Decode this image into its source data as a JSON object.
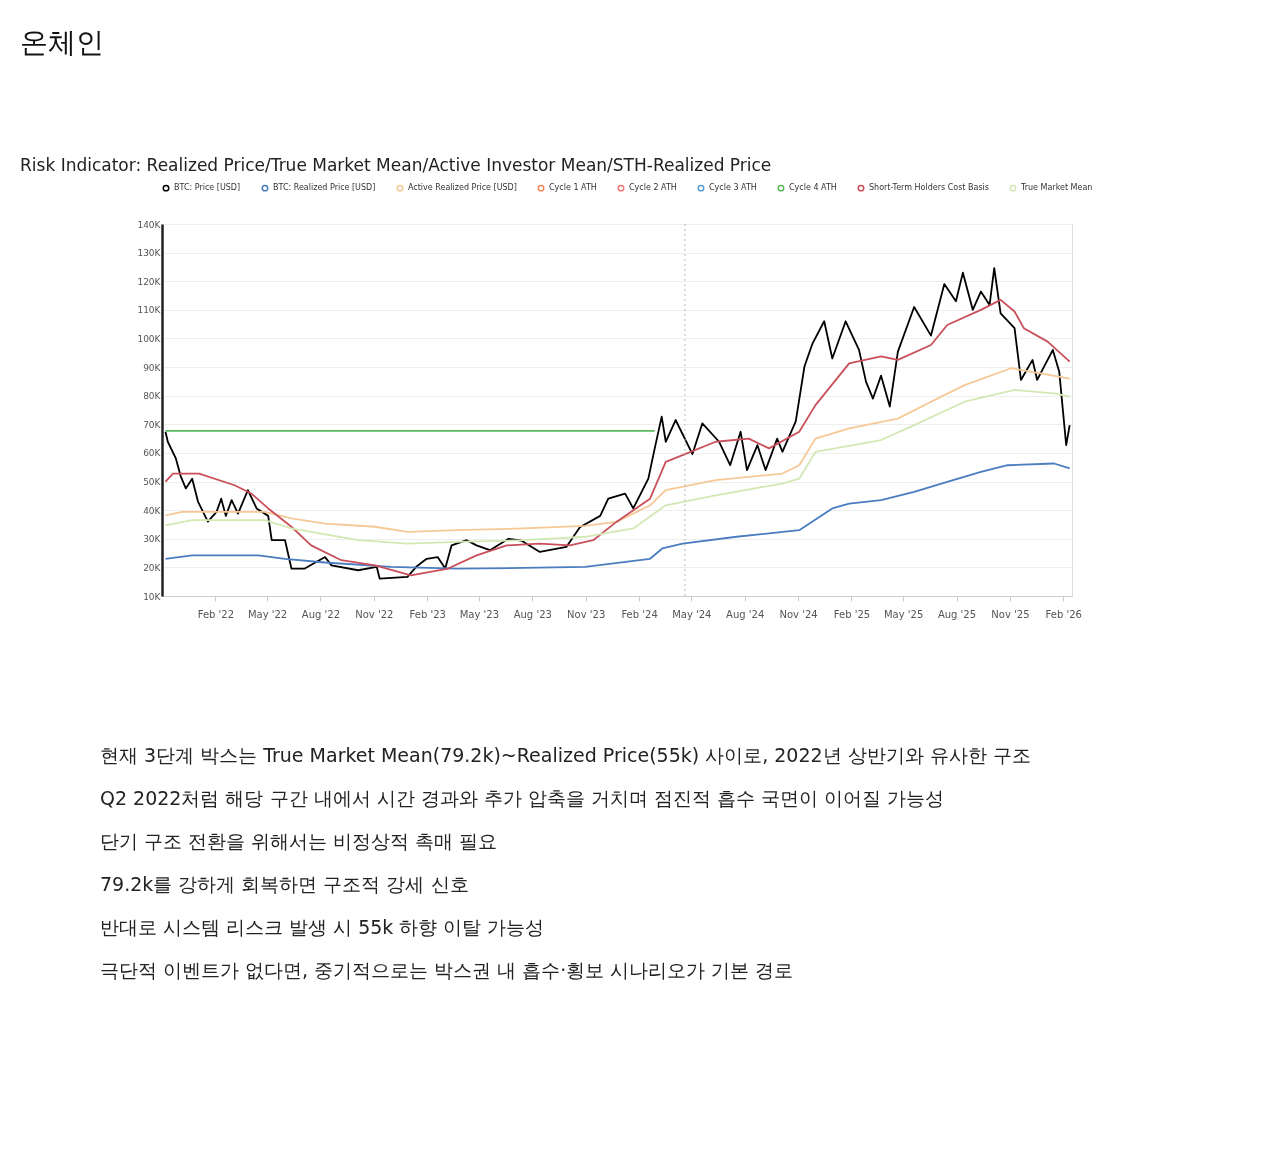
{
  "chart_data": {
    "type": "line",
    "title": "온체인",
    "subtitle": "Risk Indicator: Realized Price/True Market Mean/Active Investor Mean/STH-Realized Price",
    "legend": "top",
    "grid": "y",
    "xlim": [
      "2021-11-01",
      "2026-02-16"
    ],
    "xticks": [
      {
        "value": "2022-02-01",
        "label": "Feb '22"
      },
      {
        "value": "2022-05-01",
        "label": "May '22"
      },
      {
        "value": "2022-08-01",
        "label": "Aug '22"
      },
      {
        "value": "2022-11-01",
        "label": "Nov '22"
      },
      {
        "value": "2023-02-01",
        "label": "Feb '23"
      },
      {
        "value": "2023-05-01",
        "label": "May '23"
      },
      {
        "value": "2023-08-01",
        "label": "Aug '23"
      },
      {
        "value": "2023-11-01",
        "label": "Nov '23"
      },
      {
        "value": "2024-02-01",
        "label": "Feb '24"
      },
      {
        "value": "2024-05-01",
        "label": "May '24"
      },
      {
        "value": "2024-08-01",
        "label": "Aug '24"
      },
      {
        "value": "2024-11-01",
        "label": "Nov '24"
      },
      {
        "value": "2025-02-01",
        "label": "Feb '25"
      },
      {
        "value": "2025-05-01",
        "label": "May '25"
      },
      {
        "value": "2025-08-01",
        "label": "Aug '25"
      },
      {
        "value": "2025-11-01",
        "label": "Nov '25"
      },
      {
        "value": "2026-02-01",
        "label": "Feb '26"
      }
    ],
    "ylim": [
      10000,
      140000
    ],
    "yticks": [
      {
        "value": 10000,
        "label": "10K"
      },
      {
        "value": 20000,
        "label": "20K"
      },
      {
        "value": 30000,
        "label": "30K"
      },
      {
        "value": 40000,
        "label": "40K"
      },
      {
        "value": 50000,
        "label": "50K"
      },
      {
        "value": 60000,
        "label": "60K"
      },
      {
        "value": 70000,
        "label": "70K"
      },
      {
        "value": 80000,
        "label": "80K"
      },
      {
        "value": 90000,
        "label": "90K"
      },
      {
        "value": 100000,
        "label": "100K"
      },
      {
        "value": 110000,
        "label": "110K"
      },
      {
        "value": 120000,
        "label": "120K"
      },
      {
        "value": 130000,
        "label": "130K"
      },
      {
        "value": 140000,
        "label": "140K"
      }
    ],
    "ref_lines": [
      {
        "axis": "x",
        "value": "2024-04-20",
        "label": null,
        "color": "#bbbbbb",
        "line_style": "dotted"
      }
    ],
    "series": [
      {
        "name": "BTC: Price [USD]",
        "color": "#000000",
        "x": [
          "2021-11-07",
          "2021-11-11",
          "2021-11-25",
          "2021-12-03",
          "2021-12-12",
          "2021-12-23",
          "2022-01-02",
          "2022-01-19",
          "2022-02-03",
          "2022-02-11",
          "2022-02-19",
          "2022-03-01",
          "2022-03-12",
          "2022-03-29",
          "2022-04-13",
          "2022-05-03",
          "2022-05-09",
          "2022-06-01",
          "2022-06-12",
          "2022-07-05",
          "2022-08-09",
          "2022-08-20",
          "2022-10-05",
          "2022-11-06",
          "2022-11-11",
          "2022-12-29",
          "2023-01-13",
          "2023-01-31",
          "2023-02-19",
          "2023-03-04",
          "2023-03-15",
          "2023-04-10",
          "2023-04-27",
          "2023-05-20",
          "2023-06-21",
          "2023-07-13",
          "2023-08-14",
          "2023-09-29",
          "2023-10-22",
          "2023-11-26",
          "2023-12-10",
          "2024-01-08",
          "2024-01-22",
          "2024-02-17",
          "2024-02-28",
          "2024-03-11",
          "2024-03-18",
          "2024-04-04",
          "2024-05-03",
          "2024-05-20",
          "2024-06-18",
          "2024-07-07",
          "2024-07-25",
          "2024-08-05",
          "2024-08-23",
          "2024-09-06",
          "2024-09-26",
          "2024-10-05",
          "2024-10-28",
          "2024-11-12",
          "2024-11-26",
          "2024-12-16",
          "2024-12-30",
          "2025-01-22",
          "2025-02-14",
          "2025-02-26",
          "2025-03-10",
          "2025-03-24",
          "2025-04-08",
          "2025-04-22",
          "2025-05-20",
          "2025-06-18",
          "2025-07-11",
          "2025-07-31",
          "2025-08-12",
          "2025-08-29",
          "2025-09-12",
          "2025-09-27",
          "2025-10-05",
          "2025-10-16",
          "2025-11-09",
          "2025-11-20",
          "2025-12-10",
          "2025-12-18",
          "2026-01-14",
          "2026-01-25",
          "2026-02-06",
          "2026-02-12"
        ],
        "values": [
          67400,
          63900,
          58000,
          52000,
          47600,
          51000,
          43000,
          36000,
          39400,
          44000,
          38000,
          43500,
          38800,
          47000,
          40600,
          38000,
          29500,
          29500,
          19600,
          19600,
          23600,
          20700,
          19000,
          20200,
          16100,
          16700,
          20200,
          23000,
          23600,
          19600,
          27700,
          29500,
          27700,
          26000,
          30000,
          29400,
          25400,
          27200,
          34000,
          38000,
          44000,
          45800,
          40600,
          51000,
          61600,
          72700,
          63900,
          71500,
          59600,
          70300,
          63900,
          55700,
          67400,
          54000,
          62700,
          54000,
          65000,
          60400,
          71000,
          90200,
          98300,
          106000,
          93000,
          106000,
          96000,
          84900,
          79000,
          87000,
          76200,
          95400,
          111000,
          101000,
          119000,
          113000,
          123000,
          110000,
          116400,
          111700,
          124600,
          108800,
          103600,
          85500,
          92500,
          85500,
          96000,
          88400,
          62700,
          69700
        ]
      },
      {
        "name": "BTC: Realized Price [USD]",
        "color": "#4a7cc0",
        "x": [
          "2021-11-07",
          "2021-12-23",
          "2022-04-16",
          "2022-06-01",
          "2022-08-09",
          "2022-12-01",
          "2023-03-24",
          "2023-07-16",
          "2023-10-31",
          "2024-02-20",
          "2024-03-12",
          "2024-04-16",
          "2024-07-18",
          "2024-11-03",
          "2024-12-30",
          "2025-01-28",
          "2025-03-24",
          "2025-05-20",
          "2025-07-16",
          "2025-09-12",
          "2025-10-28",
          "2026-01-16",
          "2026-02-12"
        ],
        "values": [
          23000,
          24200,
          24200,
          23000,
          21700,
          20200,
          19600,
          19800,
          20200,
          23000,
          26600,
          28300,
          30700,
          33000,
          40600,
          42300,
          43500,
          46400,
          49900,
          53400,
          55700,
          56300,
          54600
        ]
      },
      {
        "name": "Active Realized Price [USD]",
        "color": "#f5c896",
        "x": [
          "2021-11-07",
          "2021-12-06",
          "2022-04-27",
          "2022-06-12",
          "2022-08-09",
          "2022-11-03",
          "2022-12-29",
          "2023-03-24",
          "2023-07-16",
          "2023-10-31",
          "2023-12-24",
          "2024-02-20",
          "2024-03-18",
          "2024-06-12",
          "2024-10-05",
          "2024-11-03",
          "2024-12-01",
          "2025-01-28",
          "2025-04-22",
          "2025-06-18",
          "2025-08-15",
          "2025-11-03",
          "2025-12-24",
          "2026-02-12"
        ],
        "values": [
          38200,
          39400,
          39400,
          37100,
          35300,
          34200,
          32400,
          33000,
          33600,
          34500,
          35900,
          41700,
          47000,
          50500,
          52800,
          55700,
          65000,
          68600,
          72000,
          77900,
          83700,
          89600,
          87800,
          86000
        ]
      },
      {
        "name": "Cycle 1 ATH",
        "color": "#f08a5d"
      },
      {
        "name": "Cycle 2 ATH",
        "color": "#ee7b74"
      },
      {
        "name": "Cycle 3 ATH",
        "color": "#5b9bd5"
      },
      {
        "name": "Cycle 4 ATH",
        "color": "#5cb85c",
        "x": [
          "2021-11-07",
          "2024-02-28"
        ],
        "values": [
          67700,
          67700
        ]
      },
      {
        "name": "Short-Term Holders Cost Basis",
        "color": "#c9505a",
        "x": [
          "2021-11-07",
          "2021-11-20",
          "2022-01-04",
          "2022-03-06",
          "2022-04-04",
          "2022-05-03",
          "2022-06-12",
          "2022-07-16",
          "2022-09-06",
          "2022-11-03",
          "2023-01-04",
          "2023-03-09",
          "2023-04-27",
          "2023-06-18",
          "2023-08-14",
          "2023-10-05",
          "2023-11-14",
          "2023-12-24",
          "2024-02-20",
          "2024-03-18",
          "2024-04-16",
          "2024-06-12",
          "2024-08-08",
          "2024-09-12",
          "2024-11-03",
          "2024-12-01",
          "2025-01-28",
          "2025-03-24",
          "2025-04-22",
          "2025-06-18",
          "2025-07-16",
          "2025-09-12",
          "2025-10-16",
          "2025-11-09",
          "2025-11-25",
          "2026-01-05",
          "2026-02-12"
        ],
        "values": [
          50000,
          52800,
          52800,
          48700,
          45800,
          40600,
          34200,
          27700,
          22500,
          20700,
          17200,
          19600,
          24200,
          27700,
          28300,
          27700,
          29500,
          35900,
          44000,
          56900,
          59200,
          63900,
          65000,
          61600,
          67400,
          76700,
          91300,
          93700,
          92500,
          97700,
          104700,
          110000,
          113500,
          109400,
          103600,
          98900,
          91900
        ]
      },
      {
        "name": "True Market Mean",
        "color": "#d4e8b4",
        "x": [
          "2021-11-07",
          "2021-12-23",
          "2022-04-27",
          "2022-06-12",
          "2022-10-05",
          "2022-12-29",
          "2023-03-24",
          "2023-07-16",
          "2023-10-31",
          "2024-01-22",
          "2024-03-18",
          "2024-06-12",
          "2024-10-05",
          "2024-11-03",
          "2024-12-01",
          "2025-03-24",
          "2025-05-20",
          "2025-08-15",
          "2025-11-09",
          "2026-01-16",
          "2026-02-12"
        ],
        "values": [
          34700,
          36500,
          36500,
          33600,
          29500,
          28300,
          28900,
          29500,
          30700,
          33600,
          41700,
          45200,
          49300,
          51000,
          60400,
          64500,
          69700,
          77900,
          82000,
          80800,
          79700
        ]
      }
    ],
    "annotations": [
      "현재 3단계 박스는 True Market Mean(79.2k)~Realized Price(55k) 사이로, 2022년 상반기와 유사한 구조",
      "Q2 2022처럼 해당 구간 내에서 시간 경과와 추가 압축을 거치며 점진적 흡수 국면이 이어질 가능성",
      "단기 구조 전환을 위해서는 비정상적 촉매 필요",
      "79.2k를 강하게 회복하면 구조적 강세 신호",
      "반대로 시스템 리스크 발생 시 55k 하향 이탈 가능성",
      "극단적 이벤트가 없다면, 중기적으로는 박스권 내 흡수·횡보 시나리오가 기본 경로"
    ]
  }
}
